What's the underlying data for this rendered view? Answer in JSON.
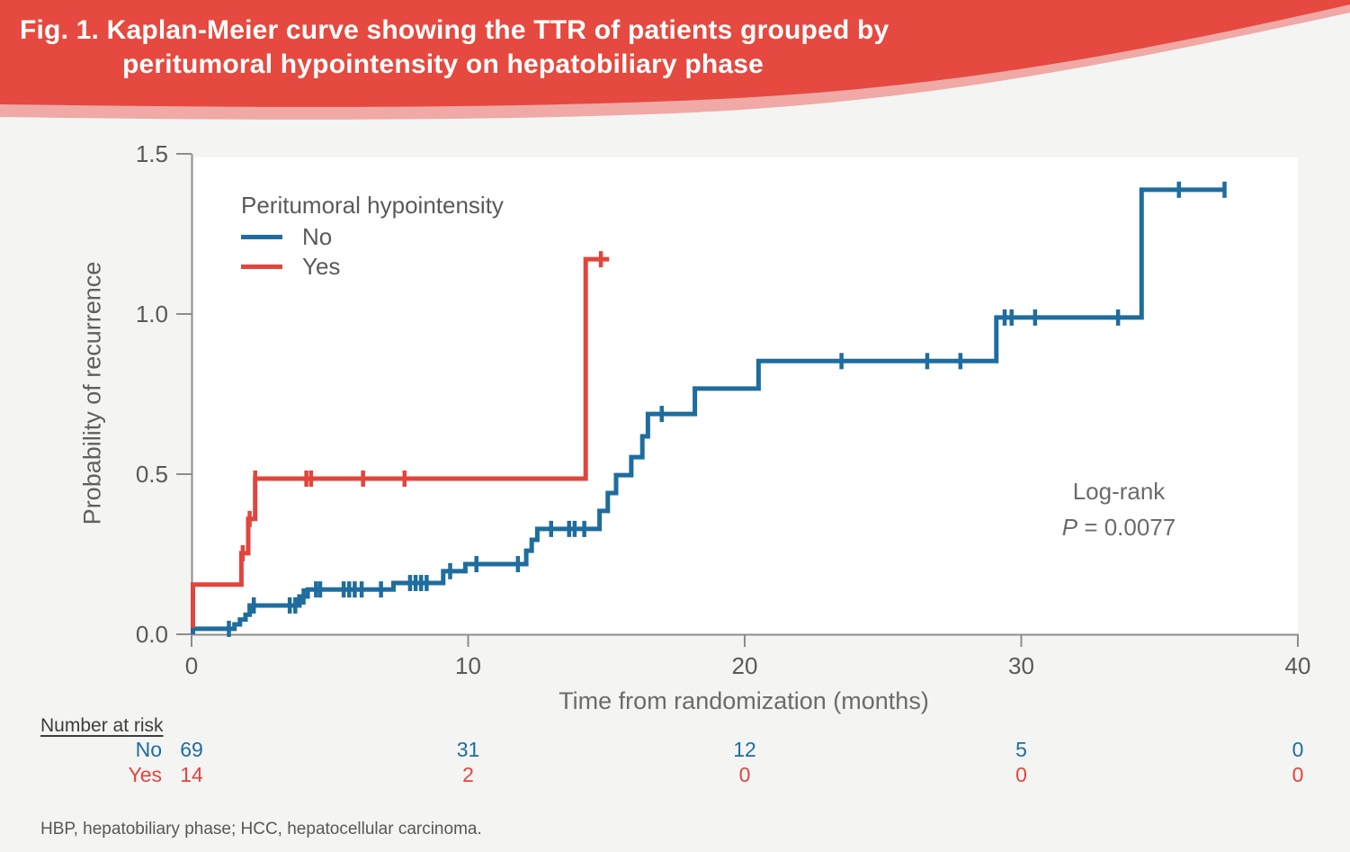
{
  "header": {
    "title_line1": "Fig. 1. Kaplan-Meier curve showing the TTR of patients grouped by",
    "title_line2": "peritumoral hypointensity on hepatobiliary phase"
  },
  "colors": {
    "banner_red": "#e6493f",
    "banner_pink": "#f0a9a5",
    "background": "#f4f4f3",
    "plot_bg": "#ffffff",
    "axis": "#8d8d8d",
    "tick_text": "#595959",
    "muted_text": "#6b6b6b",
    "no_blue": "#1e6d9e",
    "yes_red": "#e2453c"
  },
  "chart_data": {
    "type": "line",
    "subtype": "kaplan-meier-step",
    "title": "",
    "xlabel": "Time from randomization (months)",
    "ylabel": "Probability of recurrence",
    "xlim": [
      0,
      40
    ],
    "ylim": [
      0,
      1.5
    ],
    "grid": false,
    "x_ticks": [
      0,
      10,
      20,
      30,
      40
    ],
    "y_ticks": [
      "0.0",
      "0.5",
      "1.0",
      "1.5"
    ],
    "legend": {
      "title": "Peritumoral hypointensity",
      "position": "upper-left-inside",
      "entries": [
        {
          "label": "No",
          "color": "#1e6d9e"
        },
        {
          "label": "Yes",
          "color": "#e2453c"
        }
      ]
    },
    "annotation": {
      "line1": "Log-rank",
      "p_symbol": "P",
      "p_text": " = 0.0077"
    },
    "series": [
      {
        "name": "No",
        "color": "#1e6d9e",
        "start_value": 0,
        "steps": [
          [
            0.05,
            0.017
          ],
          [
            1.55,
            0.031
          ],
          [
            1.75,
            0.046
          ],
          [
            1.95,
            0.061
          ],
          [
            2.1,
            0.09
          ],
          [
            3.9,
            0.118
          ],
          [
            4.2,
            0.14
          ],
          [
            7.3,
            0.16
          ],
          [
            9.1,
            0.197
          ],
          [
            9.9,
            0.219
          ],
          [
            12.1,
            0.261
          ],
          [
            12.3,
            0.295
          ],
          [
            12.5,
            0.329
          ],
          [
            14.75,
            0.385
          ],
          [
            15.05,
            0.441
          ],
          [
            15.35,
            0.497
          ],
          [
            15.9,
            0.553
          ],
          [
            16.3,
            0.618
          ],
          [
            16.5,
            0.688
          ],
          [
            18.2,
            0.767
          ],
          [
            20.5,
            0.853
          ],
          [
            29.1,
            0.989
          ],
          [
            34.35,
            1.388
          ]
        ],
        "end_time": 37.4,
        "censors": [
          [
            1.35,
            0.017
          ],
          [
            2.25,
            0.09
          ],
          [
            3.55,
            0.09
          ],
          [
            3.75,
            0.09
          ],
          [
            4.05,
            0.118
          ],
          [
            4.5,
            0.14
          ],
          [
            4.65,
            0.14
          ],
          [
            5.5,
            0.14
          ],
          [
            5.7,
            0.14
          ],
          [
            5.9,
            0.14
          ],
          [
            6.15,
            0.14
          ],
          [
            6.85,
            0.14
          ],
          [
            7.9,
            0.16
          ],
          [
            8.1,
            0.16
          ],
          [
            8.3,
            0.16
          ],
          [
            8.5,
            0.16
          ],
          [
            9.35,
            0.197
          ],
          [
            10.3,
            0.219
          ],
          [
            11.8,
            0.219
          ],
          [
            13.0,
            0.329
          ],
          [
            13.65,
            0.329
          ],
          [
            13.85,
            0.329
          ],
          [
            14.2,
            0.329
          ],
          [
            17.0,
            0.688
          ],
          [
            23.5,
            0.853
          ],
          [
            26.6,
            0.853
          ],
          [
            27.8,
            0.853
          ],
          [
            29.4,
            0.989
          ],
          [
            29.65,
            0.989
          ],
          [
            30.5,
            0.989
          ],
          [
            33.5,
            0.989
          ],
          [
            35.7,
            1.388
          ],
          [
            37.35,
            1.388
          ]
        ]
      },
      {
        "name": "Yes",
        "color": "#e2453c",
        "start_value": 0.02,
        "steps": [
          [
            0.05,
            0.155
          ],
          [
            1.8,
            0.253
          ],
          [
            2.05,
            0.36
          ],
          [
            2.3,
            0.486
          ],
          [
            14.25,
            1.171
          ]
        ],
        "end_time": 15.1,
        "censors": [
          [
            1.85,
            0.253
          ],
          [
            2.1,
            0.36
          ],
          [
            2.3,
            0.486
          ],
          [
            4.15,
            0.486
          ],
          [
            4.32,
            0.486
          ],
          [
            6.2,
            0.486
          ],
          [
            7.7,
            0.486
          ],
          [
            14.8,
            1.171
          ]
        ]
      }
    ],
    "number_at_risk": {
      "heading": "Number at risk",
      "times": [
        0,
        10,
        20,
        30,
        40
      ],
      "rows": [
        {
          "label": "No",
          "color": "#1e6d9e",
          "values": [
            69,
            31,
            12,
            5,
            0
          ]
        },
        {
          "label": "Yes",
          "color": "#e2453c",
          "values": [
            14,
            2,
            0,
            0,
            0
          ]
        }
      ]
    }
  },
  "footer": {
    "abbreviations": "HBP, hepatobiliary phase; HCC, hepatocellular carcinoma."
  }
}
